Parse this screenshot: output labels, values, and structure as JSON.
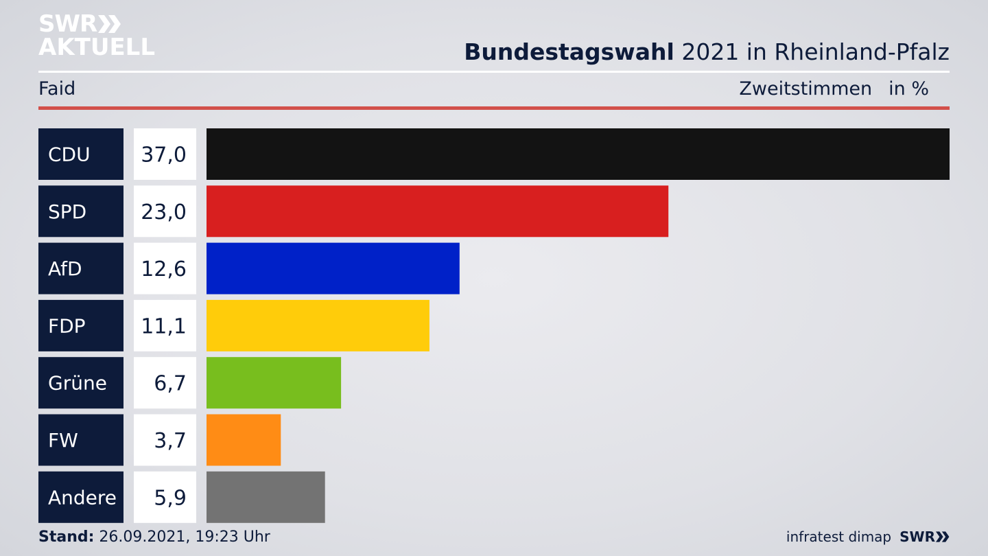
{
  "logo": {
    "line1": "SWR",
    "line2": "AKTUELL"
  },
  "header": {
    "title_bold": "Bundestagswahl",
    "title_rest": " 2021 in Rheinland-Pfalz",
    "subtitle_left": "Faid",
    "subtitle_right": "Zweitstimmen",
    "unit": "in %"
  },
  "footer": {
    "stand_label": "Stand:",
    "stand_value": " 26.09.2021, 19:23 Uhr",
    "source": "infratest dimap",
    "brand": "SWR"
  },
  "colors": {
    "navy": "#0d1b3a",
    "accent_red": "#d2504a"
  },
  "chart_data": {
    "type": "bar",
    "orientation": "horizontal",
    "categories": [
      "CDU",
      "SPD",
      "AfD",
      "FDP",
      "Grüne",
      "FW",
      "Andere"
    ],
    "values": [
      37.0,
      23.0,
      12.6,
      11.1,
      6.7,
      3.7,
      5.9
    ],
    "value_labels": [
      "37,0",
      "23,0",
      "12,6",
      "11,1",
      "6,7",
      "3,7",
      "5,9"
    ],
    "colors": [
      "#131313",
      "#d81f1f",
      "#0021c8",
      "#ffcc0a",
      "#78be1e",
      "#ff8c15",
      "#737373"
    ],
    "xlim": [
      0,
      37.0
    ]
  }
}
